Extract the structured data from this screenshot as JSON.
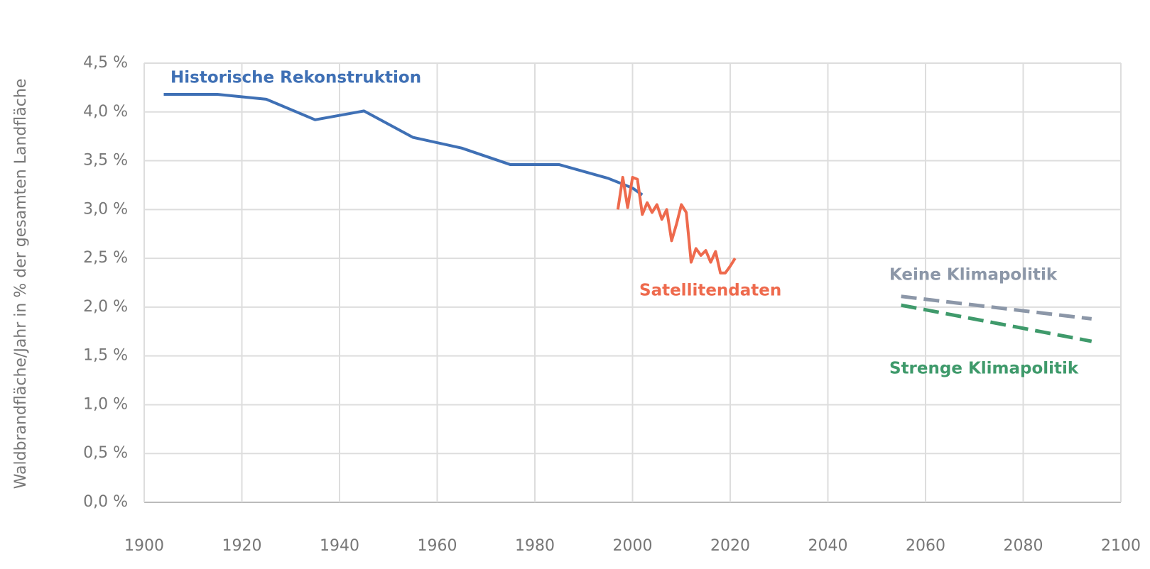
{
  "chart_data": {
    "type": "line",
    "y_label": "Waldbrandfläche/Jahr in % der gesamten Landfläche",
    "xlim": [
      1900,
      2100
    ],
    "xticks": [
      1900,
      1920,
      1940,
      1960,
      1980,
      2000,
      2020,
      2040,
      2060,
      2080,
      2100
    ],
    "ylim": [
      0,
      4.5
    ],
    "yticks": [
      {
        "value": 0,
        "label": "0,0 %"
      },
      {
        "value": 0.5,
        "label": "0,5 %"
      },
      {
        "value": 1,
        "label": "1,0 %"
      },
      {
        "value": 1.5,
        "label": "1,5 %"
      },
      {
        "value": 2,
        "label": "2,0 %"
      },
      {
        "value": 2.5,
        "label": "2,5 %"
      },
      {
        "value": 3,
        "label": "3,0 %"
      },
      {
        "value": 3.5,
        "label": "3,5 %"
      },
      {
        "value": 4,
        "label": "4,0 %"
      },
      {
        "value": 4.5,
        "label": "4,5 %"
      }
    ],
    "grid": true,
    "series": [
      {
        "name": "Historische Rekonstruktion",
        "color": "#3f70b5",
        "style": "solid",
        "x": [
          1904,
          1915,
          1925,
          1935,
          1945,
          1955,
          1965,
          1975,
          1985,
          1995,
          2000,
          2002
        ],
        "values": [
          4.18,
          4.18,
          4.13,
          3.92,
          4.01,
          3.74,
          3.63,
          3.46,
          3.46,
          3.32,
          3.22,
          3.15
        ]
      },
      {
        "name": "Satellitendaten",
        "color": "#ee6a4d",
        "style": "solid",
        "x": [
          1997,
          1998,
          1999,
          2000,
          2001,
          2002,
          2003,
          2004,
          2005,
          2006,
          2007,
          2008,
          2009,
          2010,
          2011,
          2012,
          2013,
          2014,
          2015,
          2016,
          2017,
          2018,
          2019,
          2020,
          2021
        ],
        "values": [
          3.0,
          3.33,
          3.02,
          3.33,
          3.31,
          2.95,
          3.07,
          2.97,
          3.05,
          2.9,
          3.0,
          2.68,
          2.85,
          3.05,
          2.97,
          2.46,
          2.6,
          2.53,
          2.58,
          2.46,
          2.57,
          2.35,
          2.35,
          2.42,
          2.5
        ]
      },
      {
        "name": "Keine Klimapolitik",
        "color": "#8c97a8",
        "style": "dashed",
        "x": [
          2055,
          2094
        ],
        "values": [
          2.11,
          1.88
        ]
      },
      {
        "name": "Strenge Klimapolitik",
        "color": "#3f9a6b",
        "style": "dashed",
        "x": [
          2055,
          2094
        ],
        "values": [
          2.02,
          1.65
        ]
      }
    ]
  }
}
